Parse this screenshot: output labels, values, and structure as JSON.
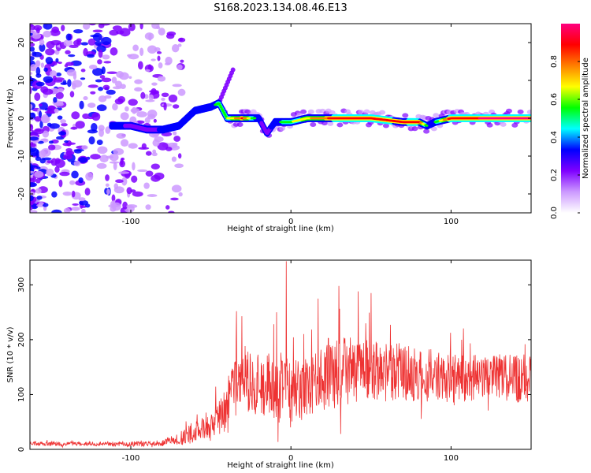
{
  "title": "S168.2023.134.08.46.E13",
  "chart_data": [
    {
      "type": "heatmap",
      "xlabel": "Height of straight line (km)",
      "ylabel": "Frequency (Hz)",
      "xlim": [
        -163,
        150
      ],
      "ylim": [
        -25,
        25
      ],
      "xticks": [
        -100,
        0,
        100
      ],
      "yticks": [
        -20,
        -10,
        0,
        10,
        20
      ],
      "colorbar": {
        "label": "Normalized spectral amplitude",
        "range": [
          0,
          1
        ],
        "ticks": [
          "0.0",
          "0.2",
          "0.4",
          "0.6",
          "0.8"
        ],
        "colormap": [
          "#ffffff",
          "#cc99ff",
          "#7f00ff",
          "#0000ff",
          "#00ffff",
          "#00ff00",
          "#ffff00",
          "#ff7f00",
          "#ff0000",
          "#ff007f"
        ]
      },
      "signal_track": {
        "x": [
          -110,
          -100,
          -90,
          -80,
          -70,
          -60,
          -50,
          -45,
          -40,
          -30,
          -20,
          -15,
          -10,
          0,
          10,
          30,
          50,
          70,
          80,
          85,
          90,
          100,
          120,
          150
        ],
        "frequency": [
          -2,
          -2,
          -3,
          -3,
          -2,
          2,
          3,
          4,
          0,
          0,
          0,
          -4,
          -1,
          -1,
          0,
          0,
          0,
          -1,
          -1,
          -2,
          -1,
          0,
          0,
          0
        ],
        "amplitude": [
          0.4,
          0.35,
          0.3,
          0.4,
          0.5,
          0.5,
          0.45,
          0.55,
          0.6,
          0.85,
          0.4,
          0.3,
          0.45,
          0.6,
          0.7,
          0.9,
          0.9,
          0.85,
          0.9,
          0.5,
          0.5,
          0.9,
          0.95,
          0.95
        ]
      },
      "grid": false
    },
    {
      "type": "line",
      "xlabel": "Height of straight line (km)",
      "ylabel": "SNR (10 * v/v)",
      "xlim": [
        -163,
        150
      ],
      "ylim": [
        0,
        345
      ],
      "xticks": [
        -100,
        0,
        100
      ],
      "yticks": [
        0,
        100,
        200,
        300
      ],
      "color": "#ee3333",
      "envelope": {
        "x": [
          -163,
          -120,
          -90,
          -80,
          -70,
          -60,
          -50,
          -42,
          -35,
          -30,
          -20,
          -10,
          -5,
          0,
          10,
          20,
          30,
          40,
          50,
          60,
          70,
          80,
          90,
          100,
          110,
          120,
          130,
          140,
          150
        ],
        "y": [
          10,
          10,
          10,
          12,
          20,
          30,
          40,
          70,
          110,
          120,
          120,
          115,
          110,
          100,
          115,
          130,
          140,
          145,
          145,
          140,
          140,
          135,
          135,
          130,
          130,
          130,
          130,
          130,
          130
        ],
        "amp": [
          4,
          4,
          5,
          6,
          12,
          20,
          25,
          40,
          60,
          60,
          55,
          60,
          70,
          60,
          55,
          60,
          65,
          60,
          55,
          55,
          55,
          50,
          50,
          45,
          45,
          45,
          45,
          45,
          45
        ]
      },
      "spikes": [
        {
          "x": -3,
          "y": 343
        },
        {
          "x": -34,
          "y": 252
        },
        {
          "x": -9,
          "y": 250
        },
        {
          "x": 30,
          "y": 298
        },
        {
          "x": 17,
          "y": 275
        },
        {
          "x": 42,
          "y": 288
        },
        {
          "x": 50,
          "y": 285
        }
      ],
      "grid": false
    }
  ]
}
